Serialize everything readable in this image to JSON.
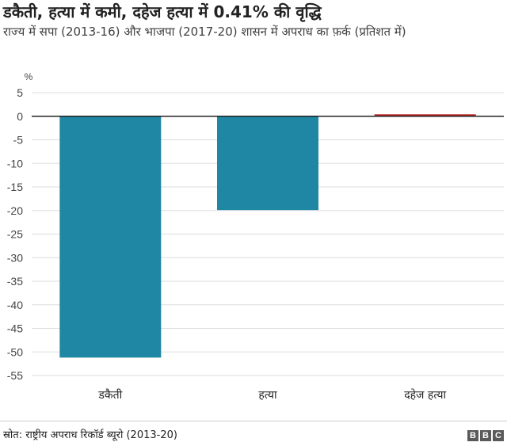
{
  "header": {
    "title": "डकैती, हत्या में कमी, दहेज हत्या में 0.41% की वृद्धि",
    "subtitle": "राज्य में सपा (2013-16) और भाजपा (2017-20) शासन में अपराध का फ़र्क (प्रतिशत में)"
  },
  "footer": {
    "source": "स्रोत: राष्ट्रीय अपराध रिकॉर्ड ब्यूरो (2013-20)",
    "logo_letters": [
      "B",
      "B",
      "C"
    ]
  },
  "chart_data": {
    "type": "bar",
    "title": "डकैती, हत्या में कमी, दहेज हत्या में 0.41% की वृद्धि",
    "subtitle": "राज्य में सपा (2013-16) और भाजपा (2017-20) शासन में अपराध का फ़र्क (प्रतिशत में)",
    "ylabel": "%",
    "xlabel": "",
    "categories": [
      "डकैती",
      "हत्या",
      "दहेज हत्या"
    ],
    "values": [
      -51.2,
      -19.9,
      0.41
    ],
    "ylim": [
      -55,
      5
    ],
    "yticks": [
      5,
      0,
      -5,
      -10,
      -15,
      -20,
      -25,
      -30,
      -35,
      -40,
      -45,
      -50,
      -55
    ],
    "grid": true,
    "colors": {
      "negative": "#1f87a3",
      "positive": "#b81f1f",
      "zero_line": "#222222",
      "grid": "#dddddd"
    }
  }
}
